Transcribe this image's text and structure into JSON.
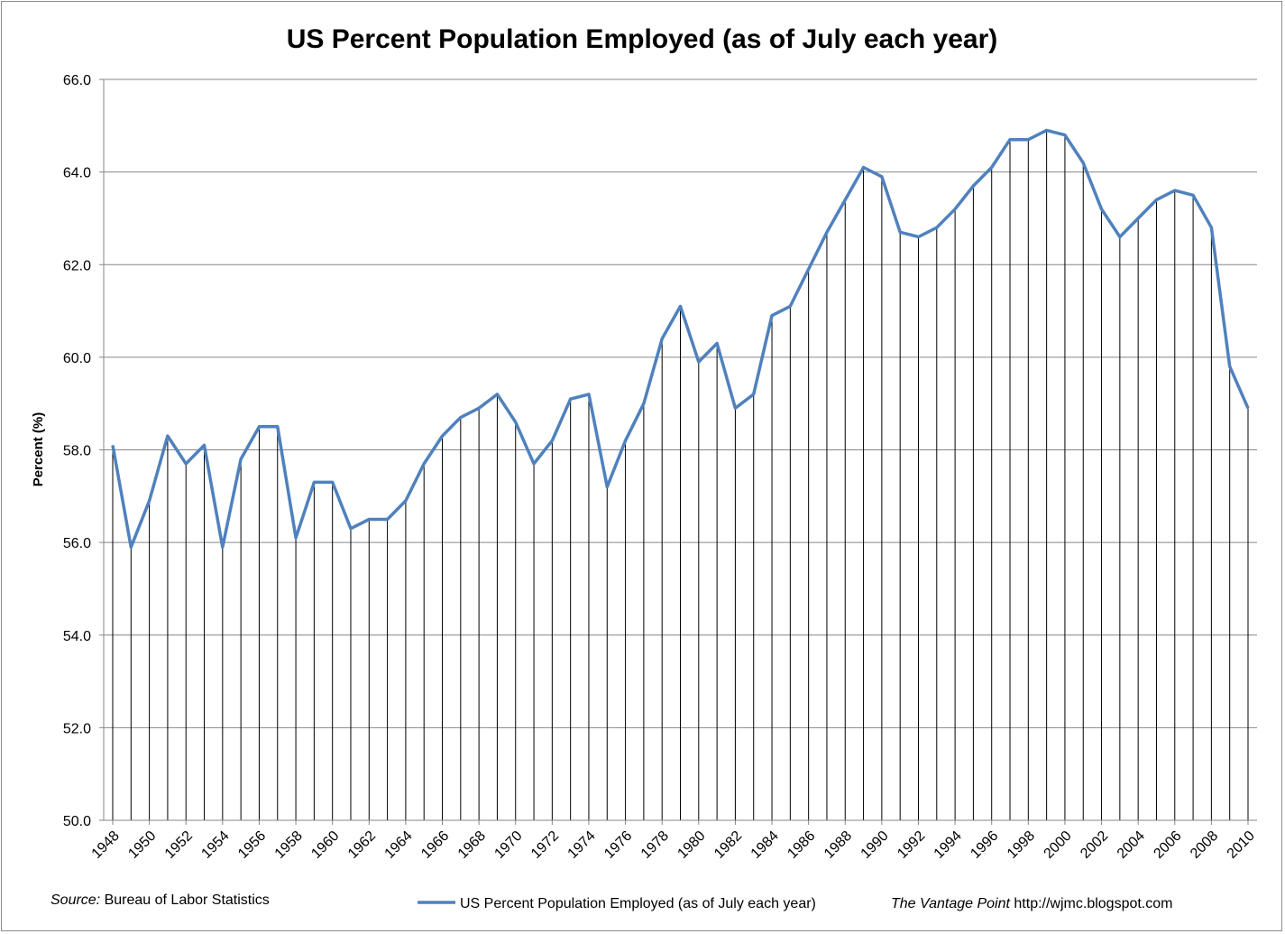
{
  "chart_data": {
    "type": "line",
    "title": "US Percent Population Employed (as of July each year)",
    "ylabel": "Percent (%)",
    "xlabel": "",
    "ylim": [
      50,
      66
    ],
    "yticks": [
      "50.0",
      "52.0",
      "54.0",
      "56.0",
      "58.0",
      "60.0",
      "62.0",
      "64.0",
      "66.0"
    ],
    "grid": true,
    "legend_position": "bottom",
    "categories": [
      1948,
      1949,
      1950,
      1951,
      1952,
      1953,
      1954,
      1955,
      1956,
      1957,
      1958,
      1959,
      1960,
      1961,
      1962,
      1963,
      1964,
      1965,
      1966,
      1967,
      1968,
      1969,
      1970,
      1971,
      1972,
      1973,
      1974,
      1975,
      1976,
      1977,
      1978,
      1979,
      1980,
      1981,
      1982,
      1983,
      1984,
      1985,
      1986,
      1987,
      1988,
      1989,
      1990,
      1991,
      1992,
      1993,
      1994,
      1995,
      1996,
      1997,
      1998,
      1999,
      2000,
      2001,
      2002,
      2003,
      2004,
      2005,
      2006,
      2007,
      2008,
      2009,
      2010
    ],
    "xtick_labels": [
      "1948",
      "1950",
      "1952",
      "1954",
      "1956",
      "1958",
      "1960",
      "1962",
      "1964",
      "1966",
      "1968",
      "1970",
      "1972",
      "1974",
      "1976",
      "1978",
      "1980",
      "1982",
      "1984",
      "1986",
      "1988",
      "1990",
      "1992",
      "1994",
      "1996",
      "1998",
      "2000",
      "2002",
      "2004",
      "2006",
      "2008",
      "2010"
    ],
    "series": [
      {
        "name": "US Percent Population Employed (as of July each year)",
        "color": "#4f81bd",
        "values": [
          58.1,
          55.9,
          56.9,
          58.3,
          57.7,
          58.1,
          55.9,
          57.8,
          58.5,
          58.5,
          56.1,
          57.3,
          57.3,
          56.3,
          56.5,
          56.5,
          56.9,
          57.7,
          58.3,
          58.7,
          58.9,
          59.2,
          58.6,
          57.7,
          58.2,
          59.1,
          59.2,
          57.2,
          58.2,
          59.0,
          60.4,
          61.1,
          59.9,
          60.3,
          58.9,
          59.2,
          60.9,
          61.1,
          61.9,
          62.7,
          63.4,
          64.1,
          63.9,
          62.7,
          62.6,
          62.8,
          63.2,
          63.7,
          64.1,
          64.7,
          64.7,
          64.9,
          64.8,
          64.2,
          63.2,
          62.6,
          63.0,
          63.4,
          63.6,
          63.5,
          62.8,
          59.8,
          58.9
        ]
      }
    ],
    "drop_lines": true,
    "source_label": "Source:",
    "source_text": "Bureau of Labor Statistics",
    "credit_name": "The Vantage Point",
    "credit_url": "http://wjmc.blogspot.com"
  }
}
